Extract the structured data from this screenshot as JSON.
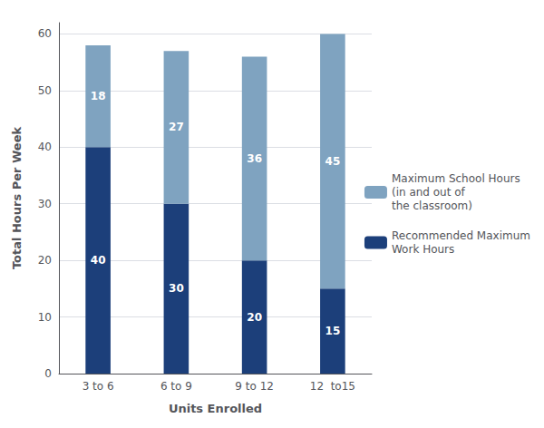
{
  "chart_data": {
    "type": "bar",
    "stacked": true,
    "data_labels": true,
    "grid": true,
    "legend": "right",
    "xlabel": "Units Enrolled",
    "ylabel": "Total Hours Per Week",
    "categories": [
      "3 to 6",
      "6 to 9",
      "9 to 12",
      "12  to15"
    ],
    "series": [
      {
        "name": "Recommended Maximum\nWork Hours",
        "color": "#1c3f7a",
        "values": [
          40,
          30,
          20,
          15
        ]
      },
      {
        "name": "Maximum School Hours\n(in and out of\nthe classroom)",
        "color": "#7fa3c0",
        "values": [
          18,
          27,
          36,
          45
        ]
      }
    ],
    "ylim": [
      0,
      62
    ],
    "yticks": [
      0,
      10,
      20,
      30,
      40,
      50,
      60
    ]
  }
}
